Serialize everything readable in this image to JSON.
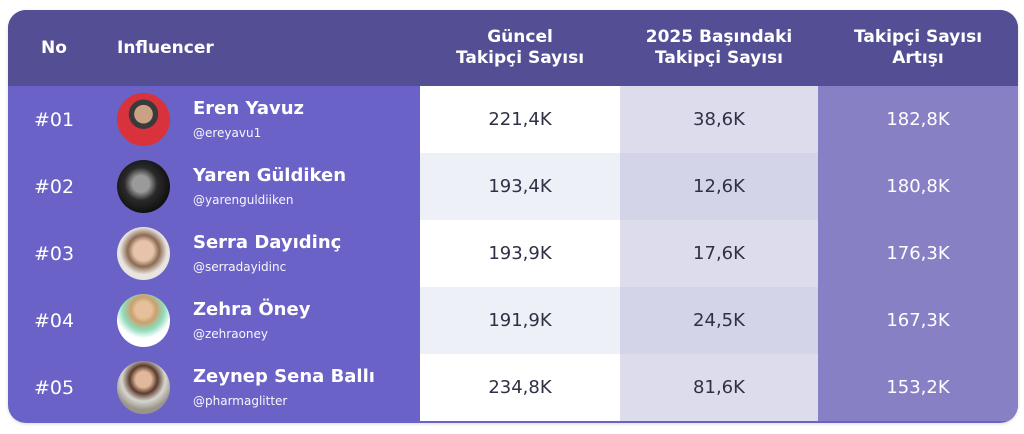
{
  "header": {
    "no": "No",
    "influencer": "Influencer",
    "current_line1": "Güncel",
    "current_line2": "Takipçi Sayısı",
    "start_line1": "2025 Başındaki",
    "start_line2": "Takipçi Sayısı",
    "increase_line1": "Takipçi Sayısı",
    "increase_line2": "Artışı"
  },
  "rows": [
    {
      "no": "#01",
      "name": "Eren Yavuz",
      "handle": "@ereyavu1",
      "current": "221,4K",
      "start": "38,6K",
      "increase": "182,8K"
    },
    {
      "no": "#02",
      "name": "Yaren Güldiken",
      "handle": "@yarenguldiiken",
      "current": "193,4K",
      "start": "12,6K",
      "increase": "180,8K"
    },
    {
      "no": "#03",
      "name": "Serra Dayıdinç",
      "handle": "@serradayidinc",
      "current": "193,9K",
      "start": "17,6K",
      "increase": "176,3K"
    },
    {
      "no": "#04",
      "name": "Zehra Öney",
      "handle": "@zehraoney",
      "current": "191,9K",
      "start": "24,5K",
      "increase": "167,3K"
    },
    {
      "no": "#05",
      "name": "Zeynep Sena Ballı",
      "handle": "@pharmaglitter",
      "current": "234,8K",
      "start": "81,6K",
      "increase": "153,2K"
    }
  ],
  "colors": {
    "header": "#544e94",
    "rows": "#6a62c6",
    "increase_column": "#8880c4"
  }
}
